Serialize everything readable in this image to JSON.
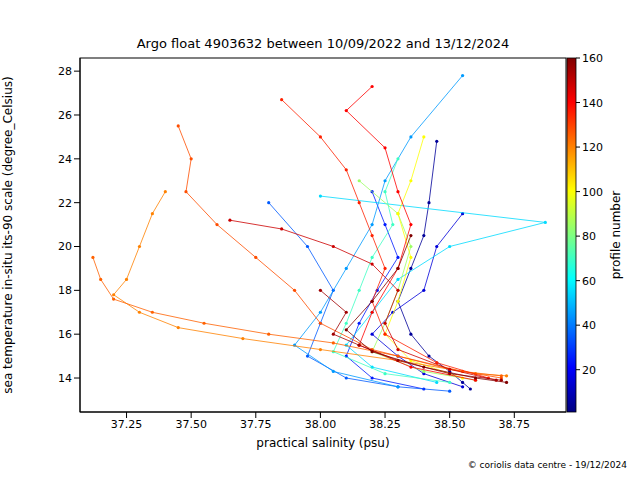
{
  "chart_data": {
    "type": "scatter",
    "title": "Argo float 4903632 between 10/09/2022 and 13/12/2024",
    "x_label": "practical salinity (psu)",
    "y_label": "sea temperature in-situ its-90 scale (degree_Celsius)",
    "annotation": "© coriolis data centre - 19/12/2024",
    "marker": "o",
    "line_style": "solid",
    "xlim": [
      37.07,
      38.95
    ],
    "xticks": [
      {
        "value": 37.25,
        "label": "37.25"
      },
      {
        "value": 37.5,
        "label": "37.50"
      },
      {
        "value": 37.75,
        "label": "37.75"
      },
      {
        "value": 38.0,
        "label": "38.00"
      },
      {
        "value": 38.25,
        "label": "38.25"
      },
      {
        "value": 38.5,
        "label": "38.50"
      },
      {
        "value": 38.75,
        "label": "38.75"
      }
    ],
    "ylim": [
      12.45,
      28.6
    ],
    "yticks": [
      14,
      16,
      18,
      20,
      22,
      24,
      26,
      28
    ],
    "colorbar": {
      "label": "profile number",
      "range": [
        1,
        160
      ],
      "ticks": [
        20,
        40,
        60,
        80,
        100,
        120,
        140,
        160
      ]
    },
    "profiles": [
      {
        "profile": 5,
        "x": [
          38.45,
          38.42,
          38.4,
          38.35,
          38.3,
          38.35,
          38.42,
          38.5,
          38.55,
          38.58
        ],
        "y": [
          24.8,
          22,
          20.5,
          19,
          17.5,
          16,
          15,
          14.3,
          13.8,
          13.5
        ]
      },
      {
        "profile": 15,
        "x": [
          38.55,
          38.45,
          38.4,
          38.28,
          38.2,
          38.3,
          38.4,
          38.55
        ],
        "y": [
          21.5,
          20,
          18,
          17,
          16,
          15,
          14.2,
          13.6
        ]
      },
      {
        "profile": 25,
        "x": [
          38.2,
          38.25,
          38.3,
          38.22,
          38.15,
          38.1,
          38.2,
          38.4
        ],
        "y": [
          22.5,
          21,
          19.5,
          18,
          16.5,
          15,
          14,
          13.5
        ]
      },
      {
        "profile": 35,
        "x": [
          37.8,
          37.95,
          38.05,
          38.0,
          37.95,
          38.1,
          38.3,
          38.5
        ],
        "y": [
          22,
          20,
          18,
          16.5,
          15,
          14,
          13.6,
          13.4
        ]
      },
      {
        "profile": 45,
        "x": [
          38.55,
          38.35,
          38.25,
          38.2,
          38.1,
          38.0,
          37.9,
          38.05,
          38.3
        ],
        "y": [
          27.8,
          25,
          23,
          21,
          19,
          17,
          15.5,
          14.3,
          13.6
        ]
      },
      {
        "profile": 55,
        "x": [
          38.0,
          38.87,
          38.5,
          38.3,
          38.2,
          38.1,
          38.2,
          38.45
        ],
        "y": [
          22.3,
          21.1,
          20,
          18.5,
          17,
          15.5,
          14.5,
          13.8
        ]
      },
      {
        "profile": 70,
        "x": [
          38.3,
          38.25,
          38.28,
          38.2,
          38.15,
          38.1,
          38.05,
          38.25,
          38.5
        ],
        "y": [
          24,
          22.5,
          21,
          19.5,
          18,
          16.5,
          15.2,
          14.2,
          13.8
        ]
      },
      {
        "profile": 85,
        "x": [
          38.15,
          38.3,
          38.35,
          38.3,
          38.25,
          38.2,
          38.4,
          38.6
        ],
        "y": [
          23,
          21.5,
          20,
          18,
          16.5,
          15.2,
          14.3,
          13.9
        ]
      },
      {
        "profile": 100,
        "x": [
          38.4,
          38.35,
          38.3,
          38.35,
          38.3,
          38.25,
          38.35,
          38.55
        ],
        "y": [
          25,
          23,
          21.5,
          19.5,
          17.5,
          16,
          14.8,
          14.0
        ]
      },
      {
        "profile": 120,
        "x": [
          37.4,
          37.35,
          37.3,
          37.25,
          37.2,
          37.3,
          37.45,
          37.7,
          38.0,
          38.3,
          38.6,
          38.72
        ],
        "y": [
          22.5,
          21.5,
          20,
          18.5,
          17.8,
          17,
          16.3,
          15.8,
          15.3,
          14.8,
          14.2,
          14.1
        ]
      },
      {
        "profile": 125,
        "x": [
          37.12,
          37.15,
          37.2,
          37.35,
          37.55,
          37.8,
          38.05,
          38.3,
          38.55,
          38.7
        ],
        "y": [
          19.5,
          18.5,
          17.6,
          17,
          16.5,
          16,
          15.6,
          15.0,
          14.3,
          14.1
        ]
      },
      {
        "profile": 128,
        "x": [
          37.45,
          37.5,
          37.48,
          37.6,
          37.75,
          37.9,
          38.0,
          38.2,
          38.5,
          38.7
        ],
        "y": [
          25.5,
          24,
          22.5,
          21,
          19.5,
          18,
          16.5,
          15.3,
          14.4,
          14.0
        ]
      },
      {
        "profile": 135,
        "x": [
          37.85,
          38.0,
          38.1,
          38.15,
          38.2,
          38.25,
          38.2,
          38.25,
          38.45,
          38.65
        ],
        "y": [
          26.7,
          25,
          23.5,
          22,
          20.5,
          19,
          17.5,
          16,
          14.7,
          14.0
        ]
      },
      {
        "profile": 140,
        "x": [
          38.2,
          38.1,
          38.25,
          38.3,
          38.35,
          38.3,
          38.2,
          38.15,
          38.35,
          38.6
        ],
        "y": [
          27.3,
          26.2,
          24.5,
          22.5,
          21,
          19,
          17,
          15.5,
          14.5,
          13.9
        ]
      },
      {
        "profile": 148,
        "x": [
          37.65,
          37.85,
          38.05,
          38.2,
          38.3,
          38.25,
          38.3,
          38.5,
          38.68
        ],
        "y": [
          21.2,
          20.8,
          20,
          19.2,
          18,
          16.5,
          15.3,
          14.4,
          13.9
        ]
      },
      {
        "profile": 155,
        "x": [
          38.0,
          38.1,
          38.05,
          38.15,
          38.3,
          38.5,
          38.7
        ],
        "y": [
          18,
          17,
          16,
          15.5,
          14.8,
          14.2,
          13.9
        ]
      },
      {
        "profile": 160,
        "x": [
          38.35,
          38.3,
          38.2,
          38.1,
          38.2,
          38.4,
          38.6,
          38.72
        ],
        "y": [
          20.5,
          19,
          17.5,
          16.2,
          15.2,
          14.5,
          14.0,
          13.8
        ]
      }
    ]
  }
}
